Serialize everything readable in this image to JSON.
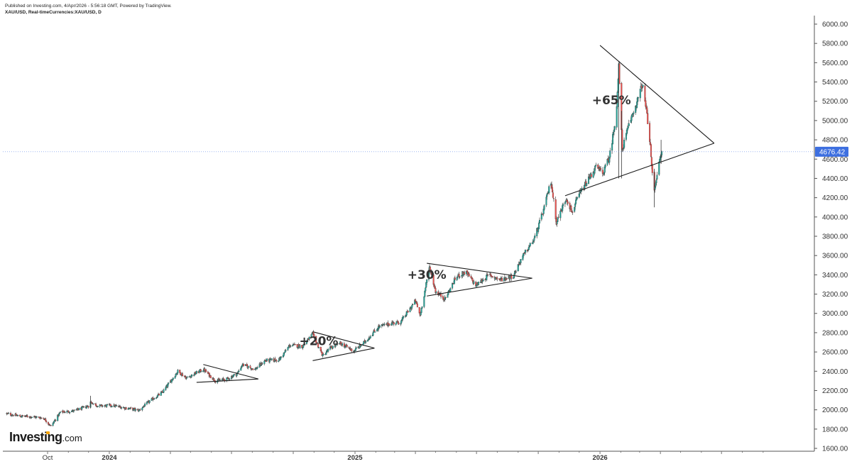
{
  "header": {
    "published": "Published on Investing.com, 4/Apr/2026 - 5:56:18 GMT, Powered by TradingView.",
    "symbol": "XAU/USD, Real-timeCurrencies:XAU/USD, D"
  },
  "logo": {
    "text": "Investing",
    "suffix": ".com"
  },
  "chart_data": {
    "type": "candlestick",
    "symbol": "XAU/USD",
    "interval": "D",
    "y_axis": {
      "range": [
        1600,
        6000
      ],
      "ticks": [
        "6000.00",
        "5800.00",
        "5600.00",
        "5400.00",
        "5200.00",
        "5000.00",
        "4800.00",
        "4600.00",
        "4400.00",
        "4200.00",
        "4000.00",
        "3800.00",
        "3600.00",
        "3400.00",
        "3200.00",
        "3000.00",
        "2800.00",
        "2600.00",
        "2400.00",
        "2200.00",
        "2000.00",
        "1800.00",
        "1600.00"
      ]
    },
    "x_axis": {
      "labels": [
        {
          "text": "Oct",
          "date": "2023-10-01",
          "bold": false
        },
        {
          "text": "2024",
          "date": "2024-01-01",
          "bold": true
        },
        {
          "text": "2025",
          "date": "2025-01-01",
          "bold": true
        },
        {
          "text": "2026",
          "date": "2026-01-01",
          "bold": true
        }
      ]
    },
    "last_price": {
      "value": 4676.42,
      "label": "4676.42",
      "color": "#3d6fe0"
    },
    "price_path": [
      {
        "date": "2023-08-01",
        "price": 1960
      },
      {
        "date": "2023-08-20",
        "price": 1935
      },
      {
        "date": "2023-09-05",
        "price": 1930
      },
      {
        "date": "2023-09-25",
        "price": 1915
      },
      {
        "date": "2023-10-06",
        "price": 1830
      },
      {
        "date": "2023-10-20",
        "price": 1975
      },
      {
        "date": "2023-11-10",
        "price": 1990
      },
      {
        "date": "2023-12-01",
        "price": 2040
      },
      {
        "date": "2023-12-04",
        "price": 2080
      },
      {
        "date": "2023-12-15",
        "price": 2040
      },
      {
        "date": "2024-01-05",
        "price": 2045
      },
      {
        "date": "2024-01-25",
        "price": 2020
      },
      {
        "date": "2024-02-14",
        "price": 1995
      },
      {
        "date": "2024-03-01",
        "price": 2090
      },
      {
        "date": "2024-03-20",
        "price": 2180
      },
      {
        "date": "2024-04-12",
        "price": 2400
      },
      {
        "date": "2024-04-25",
        "price": 2330
      },
      {
        "date": "2024-05-20",
        "price": 2420
      },
      {
        "date": "2024-06-07",
        "price": 2300
      },
      {
        "date": "2024-06-25",
        "price": 2320
      },
      {
        "date": "2024-07-10",
        "price": 2380
      },
      {
        "date": "2024-07-17",
        "price": 2470
      },
      {
        "date": "2024-08-05",
        "price": 2420
      },
      {
        "date": "2024-08-20",
        "price": 2510
      },
      {
        "date": "2024-09-10",
        "price": 2520
      },
      {
        "date": "2024-09-26",
        "price": 2670
      },
      {
        "date": "2024-10-15",
        "price": 2660
      },
      {
        "date": "2024-10-30",
        "price": 2785
      },
      {
        "date": "2024-11-14",
        "price": 2560
      },
      {
        "date": "2024-11-25",
        "price": 2640
      },
      {
        "date": "2024-12-10",
        "price": 2690
      },
      {
        "date": "2024-12-30",
        "price": 2610
      },
      {
        "date": "2025-01-15",
        "price": 2700
      },
      {
        "date": "2025-02-05",
        "price": 2860
      },
      {
        "date": "2025-02-25",
        "price": 2900
      },
      {
        "date": "2025-03-10",
        "price": 2910
      },
      {
        "date": "2025-04-01",
        "price": 3130
      },
      {
        "date": "2025-04-08",
        "price": 2980
      },
      {
        "date": "2025-04-22",
        "price": 3480
      },
      {
        "date": "2025-05-01",
        "price": 3230
      },
      {
        "date": "2025-05-15",
        "price": 3150
      },
      {
        "date": "2025-06-01",
        "price": 3380
      },
      {
        "date": "2025-06-15",
        "price": 3430
      },
      {
        "date": "2025-06-30",
        "price": 3290
      },
      {
        "date": "2025-07-20",
        "price": 3400
      },
      {
        "date": "2025-08-05",
        "price": 3350
      },
      {
        "date": "2025-08-25",
        "price": 3390
      },
      {
        "date": "2025-09-05",
        "price": 3560
      },
      {
        "date": "2025-09-25",
        "price": 3770
      },
      {
        "date": "2025-10-08",
        "price": 4050
      },
      {
        "date": "2025-10-20",
        "price": 4370
      },
      {
        "date": "2025-10-28",
        "price": 3950
      },
      {
        "date": "2025-11-12",
        "price": 4200
      },
      {
        "date": "2025-11-20",
        "price": 4050
      },
      {
        "date": "2025-12-01",
        "price": 4230
      },
      {
        "date": "2025-12-26",
        "price": 4520
      },
      {
        "date": "2026-01-05",
        "price": 4450
      },
      {
        "date": "2026-01-15",
        "price": 4620
      },
      {
        "date": "2026-01-25",
        "price": 5050
      },
      {
        "date": "2026-01-29",
        "price": 5560
      },
      {
        "date": "2026-02-03",
        "price": 4700
      },
      {
        "date": "2026-02-15",
        "price": 5000
      },
      {
        "date": "2026-02-28",
        "price": 5250
      },
      {
        "date": "2026-03-05",
        "price": 5380
      },
      {
        "date": "2026-03-10",
        "price": 5150
      },
      {
        "date": "2026-03-15",
        "price": 4900
      },
      {
        "date": "2026-03-22",
        "price": 4250
      },
      {
        "date": "2026-03-27",
        "price": 4450
      },
      {
        "date": "2026-04-03",
        "price": 4676
      }
    ],
    "trendlines": [
      {
        "from": {
          "date": "2024-05-20",
          "price": 2470
        },
        "to": {
          "date": "2024-08-10",
          "price": 2320
        }
      },
      {
        "from": {
          "date": "2024-05-10",
          "price": 2285
        },
        "to": {
          "date": "2024-08-10",
          "price": 2320
        }
      },
      {
        "from": {
          "date": "2024-10-30",
          "price": 2810
        },
        "to": {
          "date": "2025-01-30",
          "price": 2640
        }
      },
      {
        "from": {
          "date": "2024-10-30",
          "price": 2510
        },
        "to": {
          "date": "2025-01-30",
          "price": 2640
        }
      },
      {
        "from": {
          "date": "2025-04-18",
          "price": 3520
        },
        "to": {
          "date": "2025-09-22",
          "price": 3365
        }
      },
      {
        "from": {
          "date": "2025-04-18",
          "price": 3180
        },
        "to": {
          "date": "2025-09-22",
          "price": 3365
        }
      },
      {
        "from": {
          "date": "2026-01-01",
          "price": 5780
        },
        "to": {
          "date": "2026-06-20",
          "price": 4765
        }
      },
      {
        "from": {
          "date": "2025-11-10",
          "price": 4220
        },
        "to": {
          "date": "2026-06-20",
          "price": 4765
        }
      }
    ],
    "annotations": [
      {
        "text": "+20%",
        "date": "2024-10-10",
        "price": 2670
      },
      {
        "text": "+30%",
        "date": "2025-03-20",
        "price": 3360
      },
      {
        "text": "+65%",
        "date": "2025-12-20",
        "price": 5170
      }
    ],
    "colors": {
      "up": "#26a69a",
      "down": "#ef5350",
      "line": "#1a1a1a",
      "grid": "#dde3ee",
      "last_price_line": "#3d6fe0"
    }
  }
}
